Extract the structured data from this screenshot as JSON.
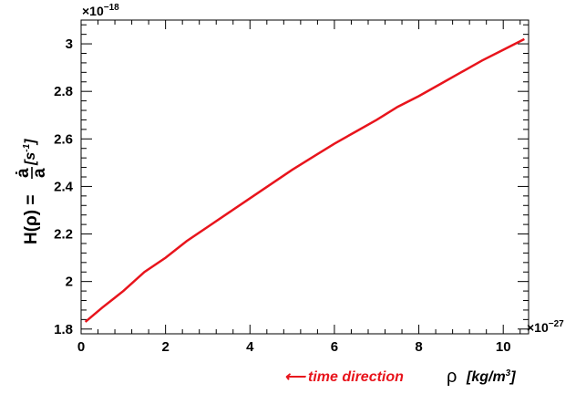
{
  "chart_data": {
    "type": "line",
    "title": "",
    "xlabel": {
      "symbol": "ρ",
      "units": "[kg/m",
      "units_sup": "3",
      "units_close": "]"
    },
    "ylabel": {
      "prefix": "H(ρ) =",
      "numerator": "ȧ",
      "denominator": "a",
      "units": "[s",
      "units_sup": "-1",
      "units_close": "]"
    },
    "x_exponent": {
      "base": "×10",
      "power": "−27"
    },
    "y_exponent": {
      "base": "×10",
      "power": "−18"
    },
    "xlim": [
      0,
      10.6
    ],
    "ylim": [
      1.78,
      3.1
    ],
    "x_ticks": [
      0,
      2,
      4,
      6,
      8,
      10
    ],
    "x_tick_labels": [
      "0",
      "2",
      "4",
      "6",
      "8",
      "10"
    ],
    "y_ticks": [
      1.8,
      2,
      2.2,
      2.4,
      2.6,
      2.8,
      3
    ],
    "y_tick_labels": [
      "1.8",
      "2",
      "2.2",
      "2.4",
      "2.6",
      "2.8",
      "3"
    ],
    "grid": false,
    "series": [
      {
        "color": "#e8141c",
        "x": [
          0.1,
          0.5,
          1.0,
          1.5,
          2.0,
          2.5,
          3.0,
          3.5,
          4.0,
          4.5,
          5.0,
          5.5,
          6.0,
          6.5,
          7.0,
          7.5,
          8.0,
          8.5,
          9.0,
          9.5,
          10.0,
          10.5
        ],
        "y": [
          1.83,
          1.89,
          1.96,
          2.04,
          2.1,
          2.17,
          2.23,
          2.29,
          2.35,
          2.41,
          2.47,
          2.525,
          2.58,
          2.63,
          2.68,
          2.735,
          2.78,
          2.83,
          2.88,
          2.93,
          2.975,
          3.02
        ]
      }
    ],
    "annotation": {
      "text": "time direction",
      "arrow": "⟵",
      "color": "#e8141c"
    }
  }
}
